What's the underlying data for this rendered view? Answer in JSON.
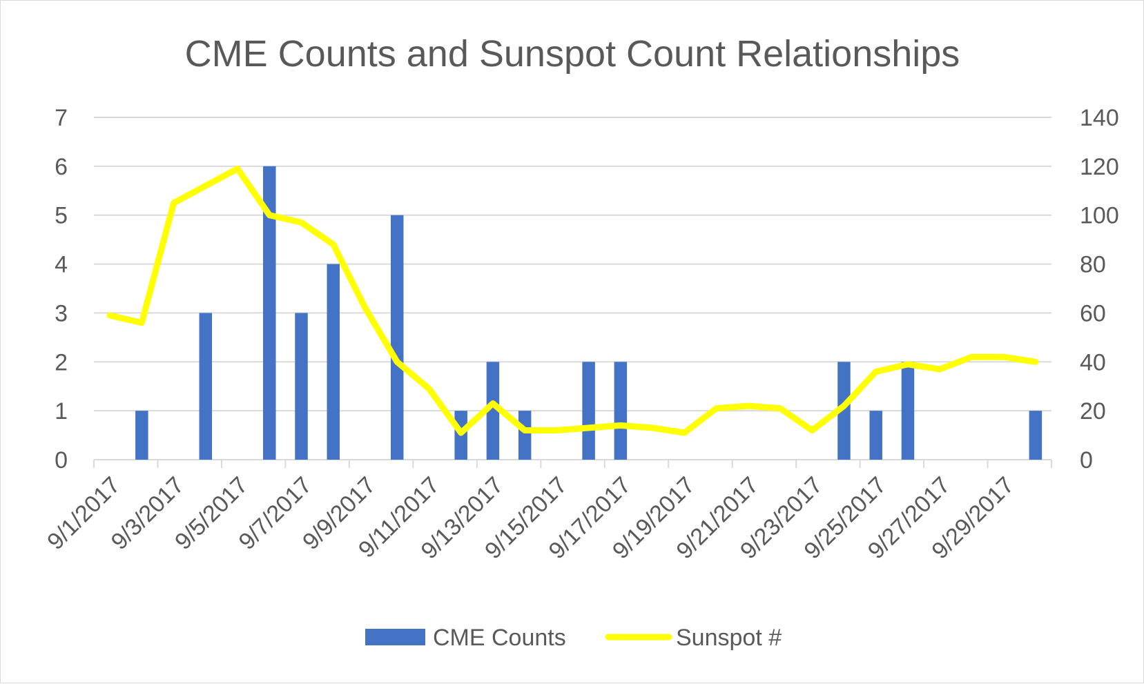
{
  "chart_data": {
    "type": "bar",
    "title": "CME Counts and Sunspot Count Relationships",
    "xlabel": "",
    "ylabel": "",
    "y2label": "",
    "categories": [
      "9/1/2017",
      "9/2/2017",
      "9/3/2017",
      "9/4/2017",
      "9/5/2017",
      "9/6/2017",
      "9/7/2017",
      "9/8/2017",
      "9/9/2017",
      "9/10/2017",
      "9/11/2017",
      "9/12/2017",
      "9/13/2017",
      "9/14/2017",
      "9/15/2017",
      "9/16/2017",
      "9/17/2017",
      "9/18/2017",
      "9/19/2017",
      "9/20/2017",
      "9/21/2017",
      "9/22/2017",
      "9/23/2017",
      "9/24/2017",
      "9/25/2017",
      "9/26/2017",
      "9/27/2017",
      "9/28/2017",
      "9/29/2017",
      "9/30/2017"
    ],
    "tick_labels": [
      "9/1/2017",
      "9/3/2017",
      "9/5/2017",
      "9/7/2017",
      "9/9/2017",
      "9/11/2017",
      "9/13/2017",
      "9/15/2017",
      "9/17/2017",
      "9/19/2017",
      "9/21/2017",
      "9/23/2017",
      "9/25/2017",
      "9/27/2017",
      "9/29/2017"
    ],
    "ylim": [
      0,
      7
    ],
    "yticks": [
      "0",
      "1",
      "2",
      "3",
      "4",
      "5",
      "6",
      "7"
    ],
    "y2lim": [
      0,
      140
    ],
    "y2ticks": [
      "0",
      "20",
      "40",
      "60",
      "80",
      "100",
      "120",
      "140"
    ],
    "grid": true,
    "legend_position": "bottom",
    "series": [
      {
        "name": "CME Counts",
        "type": "bar",
        "axis": "left",
        "color": "#4472c4",
        "values": [
          0,
          1,
          0,
          3,
          0,
          6,
          3,
          4,
          0,
          5,
          0,
          1,
          2,
          1,
          0,
          2,
          2,
          0,
          0,
          0,
          0,
          0,
          0,
          2,
          1,
          2,
          0,
          0,
          0,
          1
        ]
      },
      {
        "name": "Sunspot #",
        "type": "line",
        "axis": "right",
        "color": "#ffff00",
        "values": [
          59,
          56,
          105,
          112,
          119,
          100,
          97,
          88,
          62,
          40,
          29,
          11,
          23,
          12,
          12,
          13,
          14,
          13,
          11,
          21,
          22,
          21,
          12,
          22,
          36,
          39,
          37,
          42,
          42,
          40
        ]
      }
    ]
  }
}
